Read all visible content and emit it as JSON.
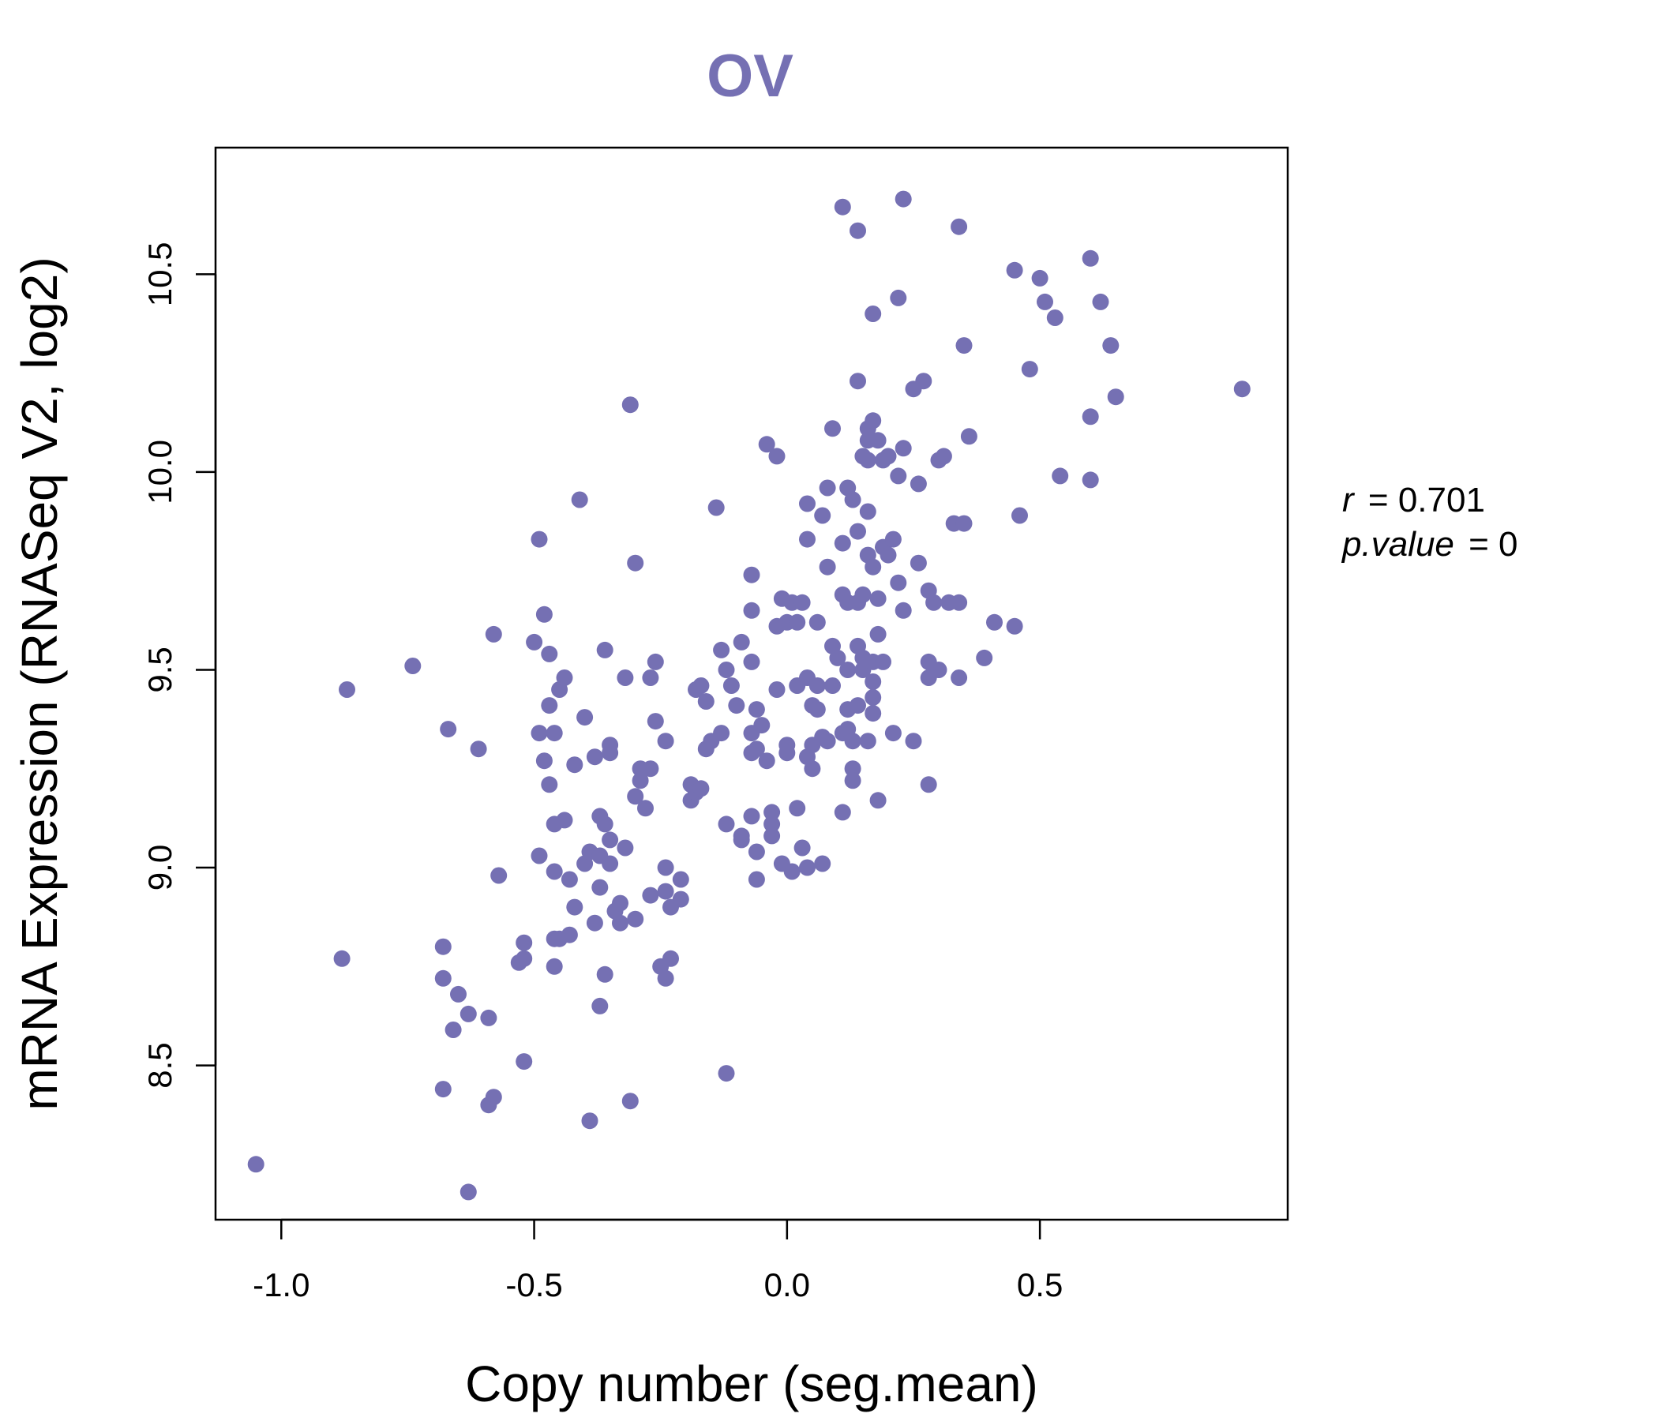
{
  "chart_data": {
    "type": "scatter",
    "title": "OV",
    "xlabel": "Copy number (seg.mean)",
    "ylabel": "mRNA Expression (RNASeq V2, log2)",
    "xlim": [
      -1.13,
      0.99
    ],
    "ylim": [
      8.11,
      10.82
    ],
    "xticks": [
      -1.0,
      -0.5,
      0.0,
      0.5
    ],
    "xtick_labels": [
      "-1.0",
      "-0.5",
      "0.0",
      "0.5"
    ],
    "yticks": [
      8.5,
      9.0,
      9.5,
      10.0,
      10.5
    ],
    "ytick_labels": [
      "8.5",
      "9.0",
      "9.5",
      "10.0",
      "10.5"
    ],
    "grid": false,
    "legend": "none",
    "color": "#7570b3",
    "stats": {
      "r_label": "r",
      "r_value": "0.701",
      "p_label": "p.value",
      "p_value": "0"
    },
    "points": [
      [
        -1.05,
        8.25
      ],
      [
        -0.88,
        8.77
      ],
      [
        -0.87,
        9.45
      ],
      [
        -0.74,
        9.51
      ],
      [
        -0.68,
        8.8
      ],
      [
        -0.68,
        8.72
      ],
      [
        -0.68,
        8.44
      ],
      [
        -0.67,
        9.35
      ],
      [
        -0.66,
        8.59
      ],
      [
        -0.65,
        8.68
      ],
      [
        -0.63,
        8.63
      ],
      [
        -0.63,
        8.18
      ],
      [
        -0.61,
        9.3
      ],
      [
        -0.59,
        8.62
      ],
      [
        -0.59,
        8.4
      ],
      [
        -0.58,
        8.42
      ],
      [
        -0.58,
        9.59
      ],
      [
        -0.57,
        8.98
      ],
      [
        -0.53,
        8.76
      ],
      [
        -0.52,
        8.77
      ],
      [
        -0.52,
        8.81
      ],
      [
        -0.52,
        8.51
      ],
      [
        -0.5,
        9.57
      ],
      [
        -0.49,
        9.83
      ],
      [
        -0.49,
        9.34
      ],
      [
        -0.49,
        9.03
      ],
      [
        -0.48,
        9.64
      ],
      [
        -0.48,
        9.27
      ],
      [
        -0.47,
        9.54
      ],
      [
        -0.47,
        9.21
      ],
      [
        -0.47,
        9.41
      ],
      [
        -0.46,
        9.34
      ],
      [
        -0.46,
        9.11
      ],
      [
        -0.46,
        8.99
      ],
      [
        -0.46,
        8.82
      ],
      [
        -0.46,
        8.75
      ],
      [
        -0.45,
        9.45
      ],
      [
        -0.45,
        8.82
      ],
      [
        -0.44,
        9.48
      ],
      [
        -0.44,
        9.12
      ],
      [
        -0.43,
        8.97
      ],
      [
        -0.43,
        8.83
      ],
      [
        -0.42,
        8.9
      ],
      [
        -0.42,
        9.26
      ],
      [
        -0.41,
        9.93
      ],
      [
        -0.4,
        9.01
      ],
      [
        -0.4,
        9.38
      ],
      [
        -0.39,
        9.04
      ],
      [
        -0.39,
        8.36
      ],
      [
        -0.38,
        8.86
      ],
      [
        -0.38,
        9.28
      ],
      [
        -0.37,
        9.03
      ],
      [
        -0.37,
        8.95
      ],
      [
        -0.37,
        8.65
      ],
      [
        -0.37,
        9.13
      ],
      [
        -0.36,
        8.73
      ],
      [
        -0.36,
        9.55
      ],
      [
        -0.36,
        9.11
      ],
      [
        -0.35,
        9.31
      ],
      [
        -0.35,
        9.29
      ],
      [
        -0.35,
        9.07
      ],
      [
        -0.35,
        9.01
      ],
      [
        -0.34,
        8.89
      ],
      [
        -0.33,
        8.86
      ],
      [
        -0.33,
        8.91
      ],
      [
        -0.32,
        9.05
      ],
      [
        -0.32,
        9.48
      ],
      [
        -0.31,
        8.41
      ],
      [
        -0.31,
        10.17
      ],
      [
        -0.3,
        9.77
      ],
      [
        -0.3,
        9.18
      ],
      [
        -0.3,
        8.87
      ],
      [
        -0.29,
        9.25
      ],
      [
        -0.29,
        9.22
      ],
      [
        -0.28,
        9.15
      ],
      [
        -0.27,
        9.48
      ],
      [
        -0.27,
        9.25
      ],
      [
        -0.27,
        8.93
      ],
      [
        -0.26,
        9.52
      ],
      [
        -0.26,
        9.37
      ],
      [
        -0.25,
        8.75
      ],
      [
        -0.24,
        9.32
      ],
      [
        -0.24,
        9.0
      ],
      [
        -0.24,
        8.94
      ],
      [
        -0.24,
        8.72
      ],
      [
        -0.23,
        8.77
      ],
      [
        -0.23,
        8.9
      ],
      [
        -0.21,
        8.92
      ],
      [
        -0.21,
        8.97
      ],
      [
        -0.19,
        9.17
      ],
      [
        -0.19,
        9.21
      ],
      [
        -0.18,
        9.19
      ],
      [
        -0.18,
        9.45
      ],
      [
        -0.17,
        9.2
      ],
      [
        -0.17,
        9.46
      ],
      [
        -0.16,
        9.3
      ],
      [
        -0.16,
        9.42
      ],
      [
        -0.15,
        9.32
      ],
      [
        -0.14,
        9.91
      ],
      [
        -0.13,
        9.34
      ],
      [
        -0.13,
        9.55
      ],
      [
        -0.12,
        9.5
      ],
      [
        -0.12,
        9.11
      ],
      [
        -0.12,
        8.48
      ],
      [
        -0.11,
        9.46
      ],
      [
        -0.1,
        9.41
      ],
      [
        -0.09,
        9.57
      ],
      [
        -0.09,
        9.07
      ],
      [
        -0.09,
        9.08
      ],
      [
        -0.07,
        9.74
      ],
      [
        -0.07,
        9.65
      ],
      [
        -0.07,
        9.52
      ],
      [
        -0.07,
        9.34
      ],
      [
        -0.07,
        9.29
      ],
      [
        -0.07,
        9.13
      ],
      [
        -0.06,
        9.4
      ],
      [
        -0.06,
        9.3
      ],
      [
        -0.06,
        9.04
      ],
      [
        -0.06,
        8.97
      ],
      [
        -0.05,
        9.36
      ],
      [
        -0.04,
        10.07
      ],
      [
        -0.04,
        9.27
      ],
      [
        -0.03,
        9.14
      ],
      [
        -0.03,
        9.11
      ],
      [
        -0.03,
        9.08
      ],
      [
        -0.02,
        9.61
      ],
      [
        -0.02,
        10.04
      ],
      [
        -0.02,
        9.45
      ],
      [
        -0.01,
        9.68
      ],
      [
        -0.01,
        9.01
      ],
      [
        0.0,
        9.62
      ],
      [
        0.0,
        9.31
      ],
      [
        0.0,
        9.29
      ],
      [
        0.01,
        9.67
      ],
      [
        0.01,
        8.99
      ],
      [
        0.02,
        9.62
      ],
      [
        0.02,
        9.46
      ],
      [
        0.02,
        9.15
      ],
      [
        0.03,
        9.67
      ],
      [
        0.03,
        9.05
      ],
      [
        0.04,
        9.48
      ],
      [
        0.04,
        9.92
      ],
      [
        0.04,
        9.83
      ],
      [
        0.04,
        9.28
      ],
      [
        0.04,
        9.0
      ],
      [
        0.05,
        9.41
      ],
      [
        0.05,
        9.25
      ],
      [
        0.05,
        9.31
      ],
      [
        0.06,
        9.46
      ],
      [
        0.06,
        9.62
      ],
      [
        0.06,
        9.4
      ],
      [
        0.07,
        9.33
      ],
      [
        0.07,
        9.89
      ],
      [
        0.07,
        9.01
      ],
      [
        0.08,
        9.96
      ],
      [
        0.08,
        9.76
      ],
      [
        0.08,
        9.32
      ],
      [
        0.09,
        9.46
      ],
      [
        0.09,
        9.56
      ],
      [
        0.09,
        10.11
      ],
      [
        0.1,
        9.53
      ],
      [
        0.11,
        9.82
      ],
      [
        0.11,
        9.34
      ],
      [
        0.11,
        9.69
      ],
      [
        0.11,
        10.67
      ],
      [
        0.11,
        9.14
      ],
      [
        0.12,
        9.96
      ],
      [
        0.12,
        9.67
      ],
      [
        0.12,
        9.5
      ],
      [
        0.12,
        9.4
      ],
      [
        0.12,
        9.35
      ],
      [
        0.13,
        9.25
      ],
      [
        0.13,
        9.22
      ],
      [
        0.13,
        9.93
      ],
      [
        0.13,
        9.32
      ],
      [
        0.14,
        9.41
      ],
      [
        0.14,
        9.67
      ],
      [
        0.14,
        10.23
      ],
      [
        0.14,
        10.61
      ],
      [
        0.14,
        9.85
      ],
      [
        0.14,
        9.56
      ],
      [
        0.15,
        9.69
      ],
      [
        0.15,
        9.5
      ],
      [
        0.15,
        9.53
      ],
      [
        0.15,
        10.04
      ],
      [
        0.16,
        9.79
      ],
      [
        0.16,
        10.08
      ],
      [
        0.16,
        10.11
      ],
      [
        0.16,
        9.9
      ],
      [
        0.16,
        10.03
      ],
      [
        0.16,
        9.32
      ],
      [
        0.17,
        10.4
      ],
      [
        0.17,
        10.13
      ],
      [
        0.17,
        9.76
      ],
      [
        0.17,
        9.52
      ],
      [
        0.17,
        9.47
      ],
      [
        0.17,
        9.43
      ],
      [
        0.17,
        9.39
      ],
      [
        0.18,
        10.08
      ],
      [
        0.18,
        9.68
      ],
      [
        0.18,
        9.59
      ],
      [
        0.18,
        9.17
      ],
      [
        0.19,
        10.03
      ],
      [
        0.19,
        9.81
      ],
      [
        0.19,
        9.52
      ],
      [
        0.2,
        9.79
      ],
      [
        0.2,
        10.04
      ],
      [
        0.21,
        9.83
      ],
      [
        0.21,
        9.34
      ],
      [
        0.22,
        10.44
      ],
      [
        0.22,
        9.99
      ],
      [
        0.22,
        9.72
      ],
      [
        0.23,
        10.69
      ],
      [
        0.23,
        10.06
      ],
      [
        0.23,
        9.65
      ],
      [
        0.25,
        9.32
      ],
      [
        0.25,
        10.21
      ],
      [
        0.26,
        9.97
      ],
      [
        0.26,
        9.77
      ],
      [
        0.27,
        10.23
      ],
      [
        0.28,
        9.21
      ],
      [
        0.28,
        9.48
      ],
      [
        0.28,
        9.7
      ],
      [
        0.28,
        9.52
      ],
      [
        0.29,
        9.67
      ],
      [
        0.3,
        9.5
      ],
      [
        0.3,
        10.03
      ],
      [
        0.31,
        10.04
      ],
      [
        0.32,
        9.67
      ],
      [
        0.33,
        9.87
      ],
      [
        0.34,
        9.67
      ],
      [
        0.34,
        9.48
      ],
      [
        0.34,
        10.62
      ],
      [
        0.35,
        10.32
      ],
      [
        0.35,
        9.87
      ],
      [
        0.36,
        10.09
      ],
      [
        0.39,
        9.53
      ],
      [
        0.41,
        9.62
      ],
      [
        0.45,
        10.51
      ],
      [
        0.45,
        9.61
      ],
      [
        0.46,
        9.89
      ],
      [
        0.48,
        10.26
      ],
      [
        0.5,
        10.49
      ],
      [
        0.51,
        10.43
      ],
      [
        0.53,
        10.39
      ],
      [
        0.54,
        9.99
      ],
      [
        0.6,
        10.54
      ],
      [
        0.6,
        10.14
      ],
      [
        0.6,
        9.98
      ],
      [
        0.62,
        10.43
      ],
      [
        0.64,
        10.32
      ],
      [
        0.65,
        10.19
      ],
      [
        0.9,
        10.21
      ]
    ]
  }
}
